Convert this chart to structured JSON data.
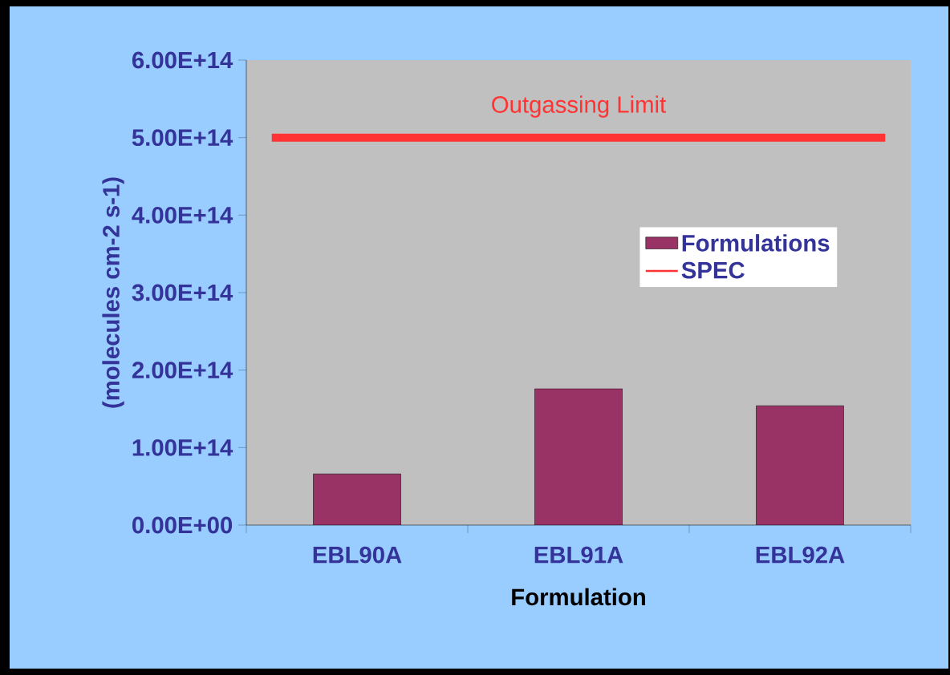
{
  "chart_data": {
    "type": "bar",
    "categories": [
      "EBL90A",
      "EBL91A",
      "EBL92A"
    ],
    "series": [
      {
        "name": "Formulations",
        "color": "#993366",
        "values": [
          66000000000000.0,
          176000000000000.0,
          154000000000000.0
        ]
      }
    ],
    "ref_lines": [
      {
        "axis": "y",
        "value": 500000000000000.0,
        "label": "SPEC",
        "color": "#ff3333"
      }
    ],
    "xlabel": "Formulation",
    "ylabel": "(molecules cm-2 s-1)",
    "annotations": [
      "Outgassing Limit"
    ],
    "ylim": [
      0,
      600000000000000.0
    ],
    "yticks": [
      {
        "value": 0,
        "label": "0.00E+00"
      },
      {
        "value": 100000000000000.0,
        "label": "1.00E+14"
      },
      {
        "value": 200000000000000.0,
        "label": "2.00E+14"
      },
      {
        "value": 300000000000000.0,
        "label": "3.00E+14"
      },
      {
        "value": 400000000000000.0,
        "label": "4.00E+14"
      },
      {
        "value": 500000000000000.0,
        "label": "5.00E+14"
      },
      {
        "value": 600000000000000.0,
        "label": "6.00E+14"
      }
    ],
    "legend": "right",
    "grid": false
  }
}
